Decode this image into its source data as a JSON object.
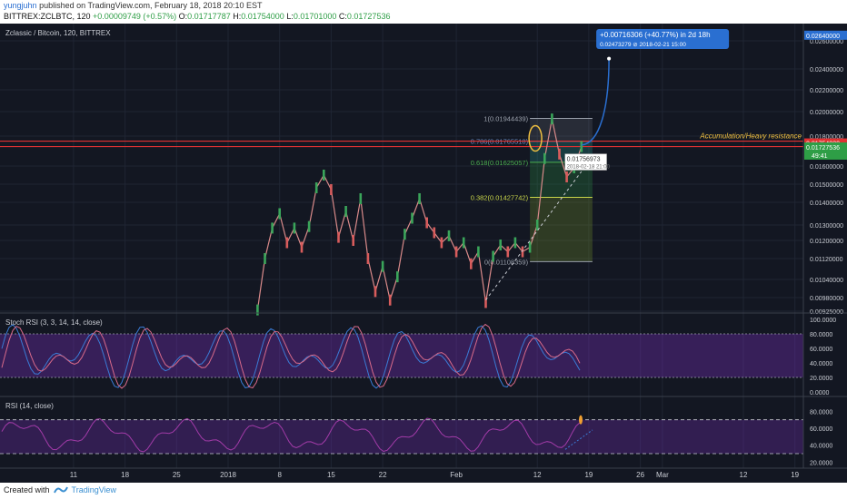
{
  "header": {
    "author": "yungjuhn",
    "published": "published on TradingView.com, February 18, 2018 20:10 EST",
    "symbol": "BITTREX:ZCLBTC, 120",
    "change": "+0.00009749 (+0.57%)",
    "ohlc": {
      "o": "0.01717787",
      "h": "0.01754000",
      "l": "0.01701000",
      "c": "0.01727536"
    }
  },
  "footer": {
    "created_with": "Created with",
    "brand": "TradingView"
  },
  "chart_data": [
    {
      "type": "line",
      "title": "Zclassic / Bitcoin, 120, BITTREX",
      "x_axis_labels": [
        "11",
        "18",
        "25",
        "2018",
        "8",
        "15",
        "22",
        "Feb",
        "12",
        "19",
        "26",
        "Mar",
        "12",
        "19"
      ],
      "y_ticks": [
        "0.02600000",
        "0.02400000",
        "0.02200000",
        "0.02000000",
        "0.01800000",
        "0.01600000",
        "0.01500000",
        "0.01400000",
        "0.01300000",
        "0.01200000",
        "0.01120000",
        "0.01040000",
        "0.00980000",
        "0.00925000"
      ],
      "y_markers": [
        {
          "value": "0.02640000",
          "color": "#2a6fd1"
        },
        {
          "value": "0.01754230",
          "color": "#e03232"
        },
        {
          "value": "0.01727536",
          "color": "#2e9e46"
        }
      ],
      "price_series": [
        {
          "d": "2018-01-05",
          "v": 0.0093
        },
        {
          "d": "2018-01-06",
          "v": 0.0112
        },
        {
          "d": "2018-01-07",
          "v": 0.0128
        },
        {
          "d": "2018-01-08",
          "v": 0.0135
        },
        {
          "d": "2018-01-09",
          "v": 0.0119
        },
        {
          "d": "2018-01-10",
          "v": 0.0128
        },
        {
          "d": "2018-01-11",
          "v": 0.0117
        },
        {
          "d": "2018-01-12",
          "v": 0.0129
        },
        {
          "d": "2018-01-13",
          "v": 0.0148
        },
        {
          "d": "2018-01-14",
          "v": 0.0155
        },
        {
          "d": "2018-01-15",
          "v": 0.0147
        },
        {
          "d": "2018-01-16",
          "v": 0.0122
        },
        {
          "d": "2018-01-17",
          "v": 0.0136
        },
        {
          "d": "2018-01-18",
          "v": 0.012
        },
        {
          "d": "2018-01-19",
          "v": 0.0142
        },
        {
          "d": "2018-01-20",
          "v": 0.0112
        },
        {
          "d": "2018-01-21",
          "v": 0.01
        },
        {
          "d": "2018-01-22",
          "v": 0.0109
        },
        {
          "d": "2018-01-23",
          "v": 0.0097
        },
        {
          "d": "2018-01-24",
          "v": 0.0105
        },
        {
          "d": "2018-01-25",
          "v": 0.0124
        },
        {
          "d": "2018-01-26",
          "v": 0.0133
        },
        {
          "d": "2018-01-27",
          "v": 0.0142
        },
        {
          "d": "2018-01-28",
          "v": 0.0131
        },
        {
          "d": "2018-01-29",
          "v": 0.0125
        },
        {
          "d": "2018-01-30",
          "v": 0.0119
        },
        {
          "d": "2018-01-31",
          "v": 0.0123
        },
        {
          "d": "2018-02-01",
          "v": 0.0115
        },
        {
          "d": "2018-02-02",
          "v": 0.0119
        },
        {
          "d": "2018-02-03",
          "v": 0.011
        },
        {
          "d": "2018-02-04",
          "v": 0.0115
        },
        {
          "d": "2018-02-05",
          "v": 0.0096
        },
        {
          "d": "2018-02-06",
          "v": 0.0113
        },
        {
          "d": "2018-02-07",
          "v": 0.0118
        },
        {
          "d": "2018-02-08",
          "v": 0.0115
        },
        {
          "d": "2018-02-09",
          "v": 0.0119
        },
        {
          "d": "2018-02-10",
          "v": 0.0115
        },
        {
          "d": "2018-02-11",
          "v": 0.0117
        },
        {
          "d": "2018-02-12",
          "v": 0.013
        },
        {
          "d": "2018-02-13",
          "v": 0.0165
        },
        {
          "d": "2018-02-14",
          "v": 0.0194
        },
        {
          "d": "2018-02-15",
          "v": 0.0168
        },
        {
          "d": "2018-02-16",
          "v": 0.0154
        },
        {
          "d": "2018-02-17",
          "v": 0.0159
        },
        {
          "d": "2018-02-18",
          "v": 0.0173
        }
      ],
      "fib_levels": [
        {
          "label": "1(0.01944439)",
          "value": 0.01944439
        },
        {
          "label": "0.786(0.01765518)",
          "value": 0.01765518
        },
        {
          "label": "0.618(0.01625057)",
          "value": 0.01625057
        },
        {
          "label": "0.382(0.01427742)",
          "value": 0.01427742
        },
        {
          "label": "0(0.01108359)",
          "value": 0.01108359
        }
      ],
      "resistance": {
        "label": "Accumulation/Heavy resistance",
        "value": "0.01754230"
      },
      "crosshair": {
        "price": "0.01756973",
        "time": "2018-02-18 21:00",
        "extra": "49:41"
      },
      "projection": {
        "line1": "+0.00716306 (+40.77%) in 2d 18h",
        "line2": "0.02473279  ⊘ 2018-02-21  15:00"
      }
    },
    {
      "type": "line",
      "title": "Stoch RSI (3, 3, 14, 14, close)",
      "y_ticks": [
        "100.0000",
        "80.0000",
        "60.0000",
        "40.0000",
        "20.0000",
        "0.0000"
      ],
      "band": [
        20,
        80
      ]
    },
    {
      "type": "line",
      "title": "RSI (14, close)",
      "y_ticks": [
        "80.0000",
        "60.0000",
        "40.0000",
        "20.0000"
      ],
      "band": [
        30,
        70
      ]
    }
  ]
}
